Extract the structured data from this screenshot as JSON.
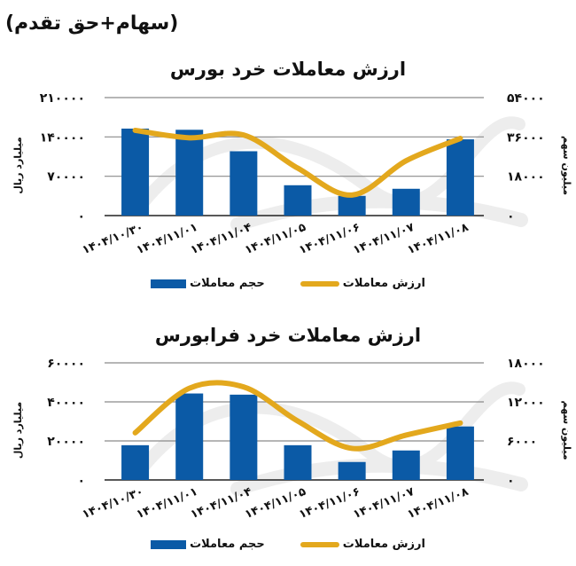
{
  "page": {
    "subtitle": "(سهام+حق تقدم)",
    "colors": {
      "bars": "#0b5aa6",
      "line": "#e3a81d",
      "grid": "#8a8a8a",
      "axis": "#222222",
      "watermark": "#ececec"
    }
  },
  "legend": {
    "value_label": "ارزش معاملات",
    "volume_label": "حجم معاملات"
  },
  "chart_data": [
    {
      "type": "bar+line",
      "title": "ارزش معاملات خرد بورس",
      "categories": [
        "1404/10/30",
        "1404/11/01",
        "1404/11/04",
        "1404/11/05",
        "1404/11/06",
        "1404/11/07",
        "1404/11/08"
      ],
      "category_labels": [
        "۱۴۰۴/۱۰/۳۰",
        "۱۴۰۴/۱۱/۰۱",
        "۱۴۰۴/۱۱/۰۴",
        "۱۴۰۴/۱۱/۰۵",
        "۱۴۰۴/۱۱/۰۶",
        "۱۴۰۴/۱۱/۰۷",
        "۱۴۰۴/۱۱/۰۸"
      ],
      "series": [
        {
          "name": "ارزش معاملات",
          "type": "line",
          "axis": "right",
          "values": [
            39000,
            35600,
            36900,
            21700,
            9400,
            25100,
            35300
          ]
        },
        {
          "name": "حجم معاملات",
          "type": "bar",
          "axis": "left",
          "values": [
            154800,
            152700,
            114500,
            54000,
            35000,
            47700,
            135700
          ]
        }
      ],
      "left_axis": {
        "label": "میلیارد ریال",
        "range": [
          0,
          210000
        ],
        "ticks": [
          0,
          70000,
          140000,
          210000
        ],
        "tick_labels": [
          "۰",
          "۷۰۰۰۰",
          "۱۴۰۰۰۰",
          "۲۱۰۰۰۰"
        ]
      },
      "right_axis": {
        "label": "میلیون سهم",
        "range": [
          0,
          54000
        ],
        "ticks": [
          0,
          18000,
          36000,
          54000
        ],
        "tick_labels": [
          "۰",
          "۱۸۰۰۰",
          "۳۶۰۰۰",
          "۵۴۰۰۰"
        ]
      },
      "grid": true,
      "legend_position": "bottom"
    },
    {
      "type": "bar+line",
      "title": "ارزش معاملات خرد فرابورس",
      "categories": [
        "1404/10/30",
        "1404/11/01",
        "1404/11/04",
        "1404/11/05",
        "1404/11/06",
        "1404/11/07",
        "1404/11/08"
      ],
      "category_labels": [
        "۱۴۰۴/۱۰/۳۰",
        "۱۴۰۴/۱۱/۰۱",
        "۱۴۰۴/۱۱/۰۴",
        "۱۴۰۴/۱۱/۰۵",
        "۱۴۰۴/۱۱/۰۶",
        "۱۴۰۴/۱۱/۰۷",
        "۱۴۰۴/۱۱/۰۸"
      ],
      "series": [
        {
          "name": "ارزش معاملات",
          "type": "line",
          "axis": "right",
          "values": [
            7250,
            14100,
            14300,
            9050,
            4850,
            6900,
            8750
          ]
        },
        {
          "name": "حجم معاملات",
          "type": "bar",
          "axis": "left",
          "values": [
            17800,
            44300,
            43700,
            17800,
            9200,
            15100,
            27400
          ]
        }
      ],
      "left_axis": {
        "label": "میلیارد ریال",
        "range": [
          0,
          60000
        ],
        "ticks": [
          0,
          20000,
          40000,
          60000
        ],
        "tick_labels": [
          "۰",
          "۲۰۰۰۰",
          "۴۰۰۰۰",
          "۶۰۰۰۰"
        ]
      },
      "right_axis": {
        "label": "میلیون سهم",
        "range": [
          0,
          18000
        ],
        "ticks": [
          0,
          6000,
          12000,
          18000
        ],
        "tick_labels": [
          "۰",
          "۶۰۰۰",
          "۱۲۰۰۰",
          "۱۸۰۰۰"
        ]
      },
      "grid": true,
      "legend_position": "bottom"
    }
  ]
}
